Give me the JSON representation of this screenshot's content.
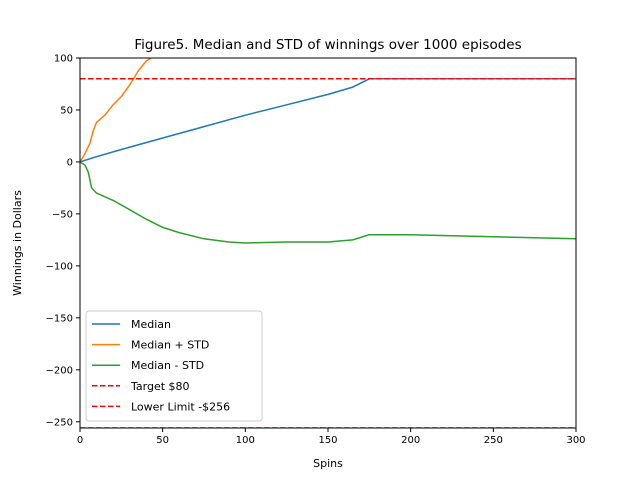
{
  "chart_data": {
    "type": "line",
    "title": "Figure5. Median and STD of winnings over 1000 episodes",
    "xlabel": "Spins",
    "ylabel": "Winnings in Dollars",
    "xlim": [
      0,
      300
    ],
    "ylim": [
      -256,
      100
    ],
    "xticks": [
      0,
      50,
      100,
      150,
      200,
      250,
      300
    ],
    "yticks": [
      100,
      50,
      0,
      -50,
      -100,
      -150,
      -200,
      -250
    ],
    "ytick_labels": [
      "100",
      "50",
      "0",
      "−50",
      "−100",
      "−150",
      "−200",
      "−250"
    ],
    "grid": false,
    "legend_position": "lower-left",
    "series": [
      {
        "name": "Median",
        "color": "#1f77b4",
        "style": "solid",
        "x": [
          0,
          10,
          25,
          50,
          75,
          100,
          125,
          150,
          165,
          175,
          200,
          250,
          300
        ],
        "y": [
          0,
          5,
          12,
          23,
          34,
          45,
          55,
          65,
          72,
          80,
          80,
          80,
          80
        ]
      },
      {
        "name": "Median + STD",
        "color": "#ff7f0e",
        "style": "solid",
        "x": [
          0,
          3,
          6,
          8,
          10,
          15,
          20,
          25,
          30,
          35,
          40,
          43
        ],
        "y": [
          0,
          8,
          18,
          30,
          38,
          45,
          55,
          63,
          74,
          87,
          97,
          100
        ]
      },
      {
        "name": "Median - STD",
        "color": "#2ca02c",
        "style": "solid",
        "x": [
          0,
          3,
          5,
          7,
          10,
          20,
          30,
          40,
          50,
          60,
          75,
          90,
          100,
          125,
          150,
          165,
          175,
          200,
          250,
          300
        ],
        "y": [
          0,
          -3,
          -10,
          -25,
          -30,
          -37,
          -46,
          -55,
          -63,
          -68,
          -74,
          -77,
          -78,
          -77,
          -77,
          -75,
          -70,
          -70,
          -72,
          -74
        ]
      },
      {
        "name": "Target $80",
        "color": "#ff0000",
        "style": "dashed",
        "x": [
          0,
          300
        ],
        "y": [
          80,
          80
        ]
      },
      {
        "name": "Lower Limit -$256",
        "color": "#ff0000",
        "style": "dashed",
        "x": [
          0,
          300
        ],
        "y": [
          -256,
          -256
        ]
      }
    ]
  }
}
